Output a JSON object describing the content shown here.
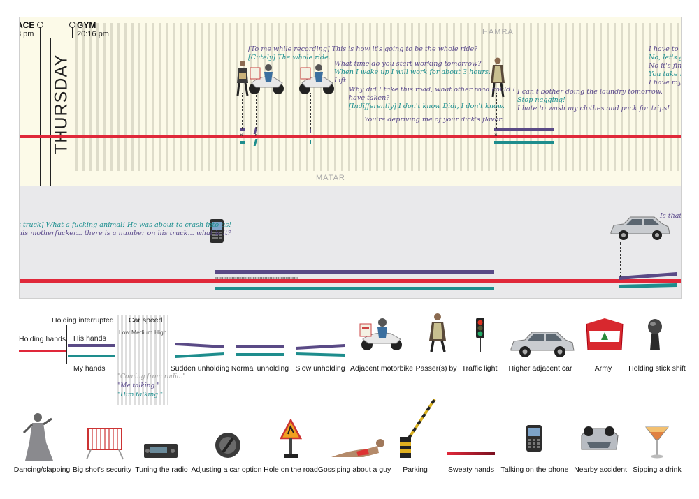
{
  "timeline": {
    "markers": [
      {
        "place": "ACE",
        "time": "8 pm"
      },
      {
        "place": "GYM",
        "time": "20:16 pm"
      }
    ],
    "day": "THURSDAY",
    "areas": [
      "HAMRA",
      "MATAR"
    ]
  },
  "dialogue": {
    "d1": {
      "text": "[To me while recording] This is how it's going to be the whole ride?",
      "speaker": "him"
    },
    "d2": {
      "text": "[Cutely] The whole ride.",
      "speaker": "me"
    },
    "d3": {
      "text": "What time do you start working tomorrow?",
      "speaker": "him"
    },
    "d4": {
      "text": "When I wake up I will work for about 3 hours.",
      "speaker": "me"
    },
    "d5": {
      "text": "Lift.",
      "speaker": "him"
    },
    "d6": {
      "text": "Why did I take this road, what other road could I",
      "speaker": "him"
    },
    "d7": {
      "text": "have taken?",
      "speaker": "him"
    },
    "d8": {
      "text": "[Indifferently] I don't know Didi, I don't know.",
      "speaker": "me"
    },
    "d9": {
      "text": "You're depriving me of your dick's flavor.",
      "speaker": "him"
    },
    "d10": {
      "text": "I can't bother doing the laundry tomorrow.",
      "speaker": "him"
    },
    "d11": {
      "text": "Stop nagging!",
      "speaker": "me"
    },
    "d12": {
      "text": "I hate to wash my clothes and pack for trips!",
      "speaker": "him"
    },
    "d13": {
      "text": "I have to fill",
      "speaker": "him"
    },
    "d14": {
      "text": "No, let's go",
      "speaker": "me"
    },
    "d15": {
      "text": "No it's fine I",
      "speaker": "him"
    },
    "d16": {
      "text": "You take my",
      "speaker": "me"
    },
    "d17": {
      "text": "I have my fu",
      "speaker": "him"
    },
    "d18": {
      "text": "t truck] What a fucking animal! He was about to crash into us!",
      "speaker": "me"
    },
    "d19": {
      "text": "his motherfucker... there is a number on his truck... what is it?",
      "speaker": "him"
    },
    "d20": {
      "text": "Is that h",
      "speaker": "him"
    }
  },
  "stops_text": "××××××××××××××××××××××××××××××××××",
  "legend": {
    "holding_hands": "Holding hands",
    "holding_interrupted": "Holding interrupted",
    "his_hands": "His hands",
    "my_hands": "My hands",
    "car_speed": "Car speed",
    "speed_low": "Low",
    "speed_medium": "Medium",
    "speed_high": "High",
    "radio": "\"Coming from radio.\"",
    "me_talking": "\"Me talking.\"",
    "him_talking": "\"Him talking.\"",
    "row1": [
      "Sudden unholding",
      "Normal unholding",
      "Slow unholding",
      "Adjacent motorbike",
      "Passer(s) by",
      "Traffic light",
      "Higher adjacent car",
      "Army",
      "Holding stick shift"
    ],
    "row2": [
      "Dancing/clapping",
      "Big shot's security",
      "Tuning the radio",
      "Adjusting a car option",
      "Hole on the road",
      "Gossiping about a guy",
      "Parking",
      "Sweaty hands",
      "Talking on the phone",
      "Nearby accident",
      "Sipping a drink"
    ]
  },
  "colors": {
    "red": "#e0283a",
    "purple": "#5a4a86",
    "teal": "#1e8d8d",
    "hamra_bg": "#fcfae8",
    "matar_bg": "#e9e9eb"
  }
}
